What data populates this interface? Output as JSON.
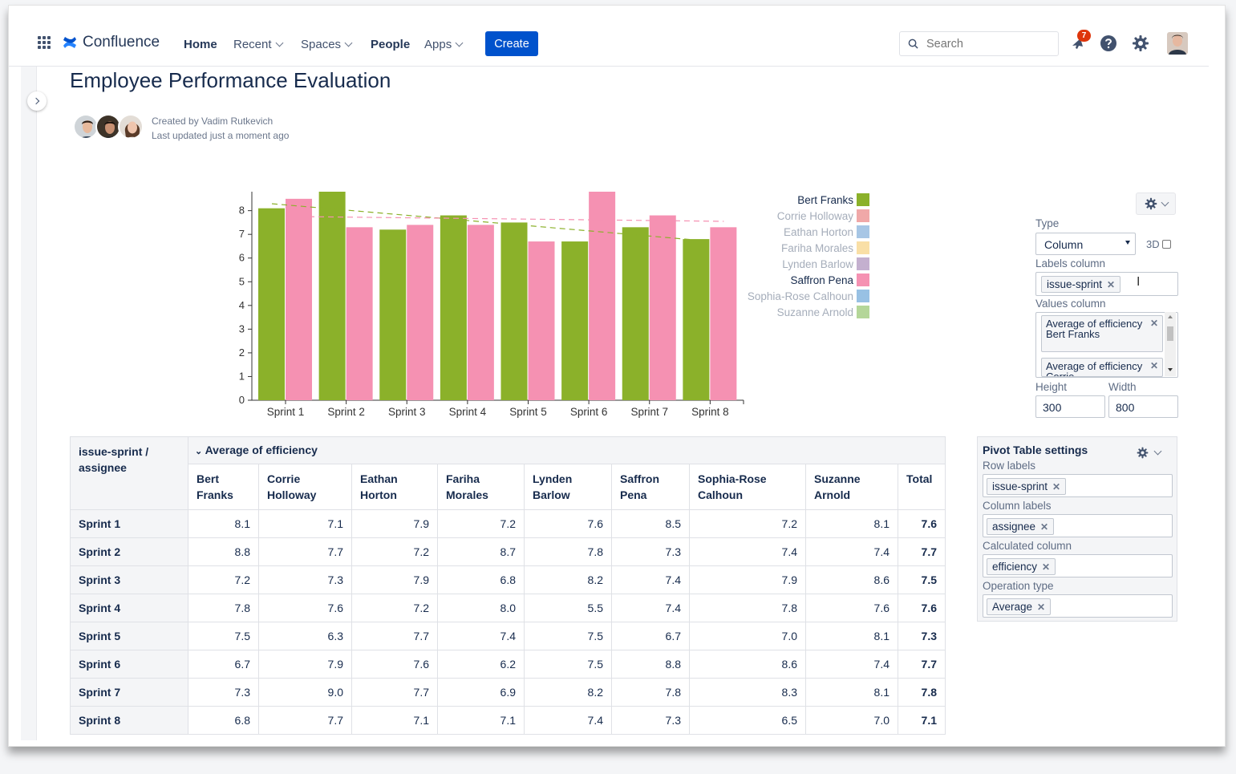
{
  "nav": {
    "logo_text": "Confluence",
    "items": [
      {
        "label": "Home",
        "dropdown": false
      },
      {
        "label": "Recent",
        "dropdown": true
      },
      {
        "label": "Spaces",
        "dropdown": true
      },
      {
        "label": "People",
        "dropdown": false
      },
      {
        "label": "Apps",
        "dropdown": true
      }
    ],
    "create_label": "Create",
    "search_placeholder": "Search",
    "notification_count": "7"
  },
  "page": {
    "title": "Employee Performance Evaluation",
    "created_by": "Created by Vadim Rutkevich",
    "last_updated": "Last updated just a moment ago"
  },
  "chart_data": {
    "type": "bar",
    "categories": [
      "Sprint 1",
      "Sprint 2",
      "Sprint 3",
      "Sprint 4",
      "Sprint 5",
      "Sprint 6",
      "Sprint 7",
      "Sprint 8"
    ],
    "series": [
      {
        "name": "Bert Franks",
        "color": "#8bb12a",
        "values": [
          8.1,
          8.8,
          7.2,
          7.8,
          7.5,
          6.7,
          7.3,
          6.8
        ],
        "visible": true
      },
      {
        "name": "Corrie Holloway",
        "color": "#f0a8a8",
        "visible": false
      },
      {
        "name": "Eathan Horton",
        "color": "#a7c6e5",
        "visible": false
      },
      {
        "name": "Fariha Morales",
        "color": "#f9dfa6",
        "visible": false
      },
      {
        "name": "Lynden Barlow",
        "color": "#c4b0cf",
        "visible": false
      },
      {
        "name": "Saffron Pena",
        "color": "#f591b2",
        "values": [
          8.5,
          7.3,
          7.4,
          7.4,
          6.7,
          8.8,
          7.8,
          7.3
        ],
        "visible": true
      },
      {
        "name": "Sophia-Rose Calhoun",
        "color": "#98c1e4",
        "visible": false
      },
      {
        "name": "Suzanne Arnold",
        "color": "#b4d699",
        "visible": false
      }
    ],
    "trendlines": true,
    "ylim": [
      0,
      8.8
    ],
    "yticks": [
      0,
      1,
      2,
      3,
      4,
      5,
      6,
      7,
      8
    ],
    "legend": "right"
  },
  "chart_settings": {
    "type_label": "Type",
    "type_value": "Column",
    "threed_label": "3D",
    "labels_column_label": "Labels column",
    "labels_column_tag": "issue-sprint",
    "values_column_label": "Values column",
    "values_tags": [
      "Average of efficiency Bert Franks",
      "Average of efficiency Corrie"
    ],
    "height_label": "Height",
    "height_value": "300",
    "width_label": "Width",
    "width_value": "800"
  },
  "pivot": {
    "corner_label": "issue-sprint / assignee",
    "group_label": "Average of efficiency",
    "columns": [
      "Bert Franks",
      "Corrie Holloway",
      "Eathan Horton",
      "Fariha Morales",
      "Lynden Barlow",
      "Saffron Pena",
      "Sophia-Rose Calhoun",
      "Suzanne Arnold",
      "Total"
    ],
    "rows": [
      {
        "label": "Sprint 1",
        "values": [
          "8.1",
          "7.1",
          "7.9",
          "7.2",
          "7.6",
          "8.5",
          "7.2",
          "8.1"
        ],
        "total": "7.6"
      },
      {
        "label": "Sprint 2",
        "values": [
          "8.8",
          "7.7",
          "7.2",
          "8.7",
          "7.8",
          "7.3",
          "7.4",
          "7.4"
        ],
        "total": "7.7"
      },
      {
        "label": "Sprint 3",
        "values": [
          "7.2",
          "7.3",
          "7.9",
          "6.8",
          "8.2",
          "7.4",
          "7.9",
          "8.6"
        ],
        "total": "7.5"
      },
      {
        "label": "Sprint 4",
        "values": [
          "7.8",
          "7.6",
          "7.2",
          "8.0",
          "5.5",
          "7.4",
          "7.8",
          "7.6"
        ],
        "total": "7.6"
      },
      {
        "label": "Sprint 5",
        "values": [
          "7.5",
          "6.3",
          "7.7",
          "7.4",
          "7.5",
          "6.7",
          "7.0",
          "8.1"
        ],
        "total": "7.3"
      },
      {
        "label": "Sprint 6",
        "values": [
          "6.7",
          "7.9",
          "7.6",
          "6.2",
          "7.5",
          "8.8",
          "8.6",
          "7.4"
        ],
        "total": "7.7"
      },
      {
        "label": "Sprint 7",
        "values": [
          "7.3",
          "9.0",
          "7.7",
          "6.9",
          "8.2",
          "7.8",
          "8.3",
          "8.1"
        ],
        "total": "7.8"
      },
      {
        "label": "Sprint 8",
        "values": [
          "6.8",
          "7.7",
          "7.1",
          "7.1",
          "7.4",
          "7.3",
          "6.5",
          "7.0"
        ],
        "total": "7.1"
      }
    ]
  },
  "pivot_settings": {
    "title": "Pivot Table settings",
    "row_labels_label": "Row labels",
    "row_labels_tag": "issue-sprint",
    "column_labels_label": "Column labels",
    "column_labels_tag": "assignee",
    "calculated_column_label": "Calculated column",
    "calculated_column_tag": "efficiency",
    "operation_type_label": "Operation type",
    "operation_type_tag": "Average"
  }
}
